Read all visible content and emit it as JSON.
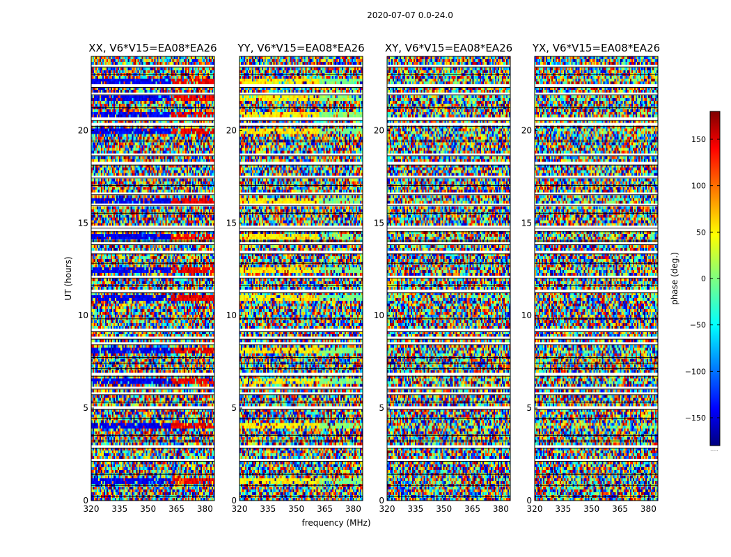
{
  "chart_data": {
    "type": "heatmap",
    "title": "2020-07-07 0.0-24.0",
    "xlabel": "frequency (MHz)",
    "ylabel": "UT (hours)",
    "xlim": [
      320,
      385
    ],
    "ylim": [
      0,
      24
    ],
    "x_ticks": [
      "320",
      "335",
      "350",
      "365",
      "380"
    ],
    "x_tick_values": [
      320,
      335,
      350,
      365,
      380
    ],
    "y_ticks": [
      "0",
      "5",
      "10",
      "15",
      "20"
    ],
    "y_tick_values": [
      0,
      5,
      10,
      15,
      20
    ],
    "panels": [
      {
        "title": "XX, V6*V15=EA08*EA26",
        "base_phase": -140,
        "alt_phase": 140,
        "coherence": 0.8,
        "band_edge_mhz": 362
      },
      {
        "title": "YY, V6*V15=EA08*EA26",
        "base_phase": 50,
        "alt_phase": 0,
        "coherence": 0.75,
        "band_edge_mhz": 362
      },
      {
        "title": "XY, V6*V15=EA08*EA26",
        "base_phase": 0,
        "alt_phase": 0,
        "coherence": 0.15,
        "band_edge_mhz": 362
      },
      {
        "title": "YX, V6*V15=EA08*EA26",
        "base_phase": 0,
        "alt_phase": 0,
        "coherence": 0.15,
        "band_edge_mhz": 362
      }
    ],
    "coherent_scans_ut": [
      1.1,
      4.1,
      6.4,
      8.1,
      11.0,
      12.4,
      14.3,
      16.2,
      19.9,
      20.8,
      21.7,
      22.6
    ],
    "scan_gaps_ut": [
      0.3,
      0.9,
      1.5,
      2.2,
      2.9,
      3.3,
      3.6,
      4.5,
      5.0,
      5.4,
      5.8,
      6.1,
      6.8,
      7.2,
      7.5,
      7.8,
      8.5,
      8.8,
      9.2,
      9.9,
      11.3,
      11.7,
      12.1,
      12.9,
      13.4,
      13.9,
      14.1,
      14.6,
      14.8,
      15.6,
      16.0,
      16.6,
      17.1,
      17.5,
      18.2,
      18.7,
      19.5,
      20.3,
      20.6,
      21.3,
      22.0,
      22.4,
      23.1,
      23.5
    ],
    "colorbar": {
      "label": "phase (deg.)",
      "range": [
        -180,
        180
      ],
      "ticks": [
        "−150",
        "−100",
        "−50",
        "0",
        "50",
        "100",
        "150"
      ],
      "tick_values": [
        -150,
        -100,
        -50,
        0,
        50,
        100,
        150
      ],
      "footer": "......"
    }
  }
}
